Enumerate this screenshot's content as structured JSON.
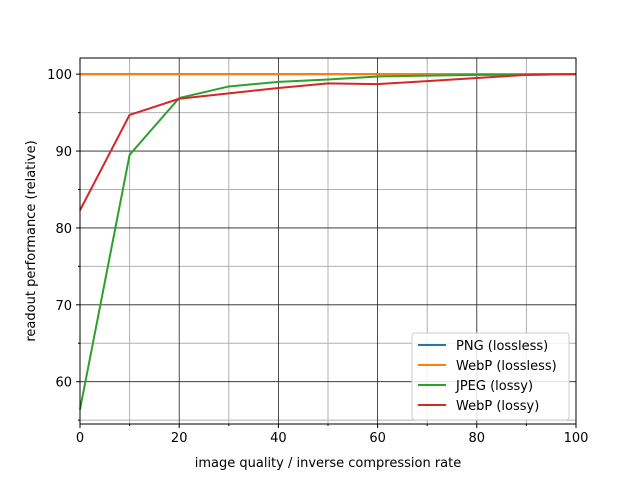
{
  "chart_data": {
    "type": "line",
    "xlabel": "image quality / inverse compression rate",
    "ylabel": "readout performance (relative)",
    "xlim": [
      0,
      100
    ],
    "ylim": [
      54.5,
      102.1
    ],
    "xticks": [
      0,
      20,
      40,
      60,
      80,
      100
    ],
    "yticks": [
      60,
      70,
      80,
      90,
      100
    ],
    "x_minor_ticks": [
      10,
      30,
      50,
      70,
      90
    ],
    "y_minor_ticks": [
      55,
      65,
      75,
      85,
      95
    ],
    "grid": true,
    "legend_position": "lower-right",
    "x": [
      0,
      10,
      20,
      30,
      40,
      50,
      60,
      70,
      80,
      90,
      100
    ],
    "series": [
      {
        "name": "PNG (lossless)",
        "color": "#1f77b4",
        "values": [
          100,
          100,
          100,
          100,
          100,
          100,
          100,
          100,
          100,
          100,
          100
        ]
      },
      {
        "name": "WebP (lossless)",
        "color": "#ff7f0e",
        "values": [
          100,
          100,
          100,
          100,
          100,
          100,
          100,
          100,
          100,
          100,
          100
        ]
      },
      {
        "name": "JPEG (lossy)",
        "color": "#2ca02c",
        "values": [
          56.4,
          89.5,
          96.9,
          98.4,
          99.0,
          99.3,
          99.7,
          99.8,
          99.9,
          99.9,
          100
        ]
      },
      {
        "name": "WebP (lossy)",
        "color": "#d62728",
        "values": [
          82.3,
          94.7,
          96.8,
          97.5,
          98.2,
          98.8,
          98.7,
          99.1,
          99.5,
          99.9,
          100
        ]
      }
    ]
  }
}
